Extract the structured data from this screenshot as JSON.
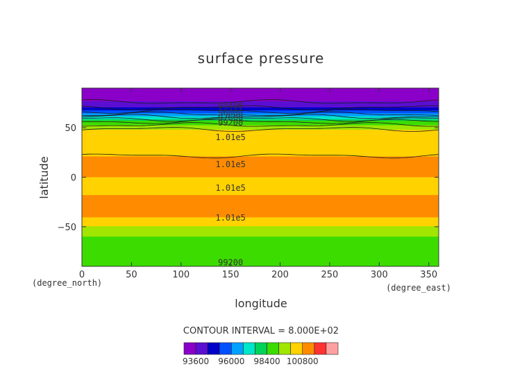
{
  "chart_data": {
    "type": "heatmap",
    "title": "surface pressure",
    "xlabel": "longitude",
    "ylabel": "latitude",
    "x_units": "(degree_east)",
    "y_units": "(degree_north)",
    "xlim": [
      0,
      360
    ],
    "ylim": [
      -90,
      90
    ],
    "x_ticks": [
      0,
      50,
      100,
      150,
      200,
      250,
      300,
      350
    ],
    "y_ticks": [
      -50,
      0,
      50
    ],
    "contour_interval_text": "CONTOUR INTERVAL = 8.000E+02",
    "contour_interval": 800,
    "colorbar": {
      "levels": [
        93200,
        94000,
        94800,
        95600,
        96400,
        97200,
        98000,
        98800,
        99600,
        100400,
        101200,
        102000,
        102800
      ],
      "tick_labels": [
        "93600",
        "96000",
        "98400",
        "100800"
      ],
      "colors": [
        "#8a00c8",
        "#5a0fd2",
        "#0000c8",
        "#0050ff",
        "#00a0ff",
        "#00e6c8",
        "#00d25a",
        "#3cdc00",
        "#a0e600",
        "#ffd200",
        "#ff8c00",
        "#ff3232",
        "#ffa0a0"
      ]
    },
    "contour_labels": [
      "94400",
      "96000",
      "97600",
      "99200",
      "1.01e5",
      "1.01e5",
      "1.01e5",
      "1.01e5",
      "99200"
    ],
    "latitude_profile": [
      {
        "lat": 90,
        "value": 93400
      },
      {
        "lat": 80,
        "value": 93600
      },
      {
        "lat": 72,
        "value": 94400
      },
      {
        "lat": 65,
        "value": 96000
      },
      {
        "lat": 60,
        "value": 97600
      },
      {
        "lat": 55,
        "value": 99200
      },
      {
        "lat": 48,
        "value": 100500
      },
      {
        "lat": 35,
        "value": 101000
      },
      {
        "lat": 15,
        "value": 101300
      },
      {
        "lat": 0,
        "value": 101200
      },
      {
        "lat": -15,
        "value": 101100
      },
      {
        "lat": -27,
        "value": 101500
      },
      {
        "lat": -35,
        "value": 101500
      },
      {
        "lat": -45,
        "value": 101000
      },
      {
        "lat": -50,
        "value": 100300
      },
      {
        "lat": -60,
        "value": 99600
      },
      {
        "lat": -75,
        "value": 99500
      },
      {
        "lat": -90,
        "value": 99300
      }
    ]
  }
}
